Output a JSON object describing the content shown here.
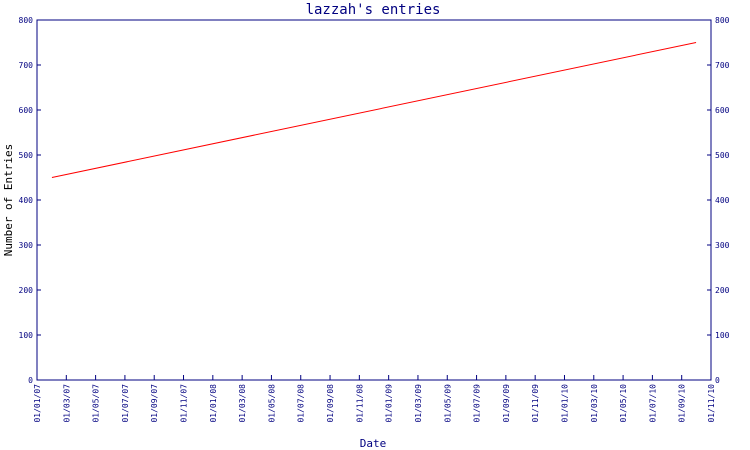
{
  "chart_data": {
    "type": "line",
    "title": "lazzah's entries",
    "xlabel": "Date",
    "ylabel": "Number of Entries",
    "x_ticks": [
      "01/01/07",
      "01/03/07",
      "01/05/07",
      "01/07/07",
      "01/09/07",
      "01/11/07",
      "01/01/08",
      "01/03/08",
      "01/05/08",
      "01/07/08",
      "01/09/08",
      "01/11/08",
      "01/01/09",
      "01/03/09",
      "01/05/09",
      "01/07/09",
      "01/09/09",
      "01/11/09",
      "01/01/10",
      "01/03/10",
      "01/05/10",
      "01/07/10",
      "01/09/10",
      "01/11/10"
    ],
    "y_ticks": [
      "0",
      "100",
      "200",
      "300",
      "400",
      "500",
      "600",
      "700",
      "800"
    ],
    "ylim": [
      0,
      800
    ],
    "xlim": [
      "2007-01-01",
      "2010-11-01"
    ],
    "series": [
      {
        "x": [
          "2007-02-01",
          "2010-10-01"
        ],
        "y": [
          450,
          750
        ]
      }
    ],
    "colors": {
      "axis": "#000080",
      "line": "#ff0000"
    },
    "grid": false,
    "right_axis_mirrors_left": true
  }
}
